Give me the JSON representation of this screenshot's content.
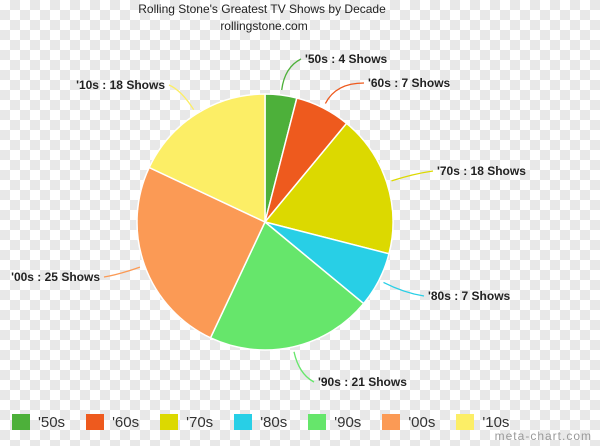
{
  "chart_data": {
    "type": "pie",
    "title": "Rolling Stone's Greatest TV Shows by Decade",
    "subtitle": "rollingstone.com",
    "categories": [
      "'50s",
      "'60s",
      "'70s",
      "'80s",
      "'90s",
      "'00s",
      "'10s"
    ],
    "values": [
      4,
      7,
      18,
      7,
      21,
      25,
      18
    ],
    "colors": [
      "#4db03a",
      "#ee5a1e",
      "#dcd900",
      "#28cfe6",
      "#66e66b",
      "#fb9a55",
      "#fcee66"
    ],
    "data_labels": [
      "'50s : 4 Shows",
      "'60s : 7 Shows",
      "'70s : 18 Shows",
      "'80s : 7 Shows",
      "'90s : 21 Shows",
      "'00s : 25 Shows",
      "'10s : 18 Shows"
    ],
    "legend_position": "bottom"
  },
  "watermark": "meta-chart.com"
}
